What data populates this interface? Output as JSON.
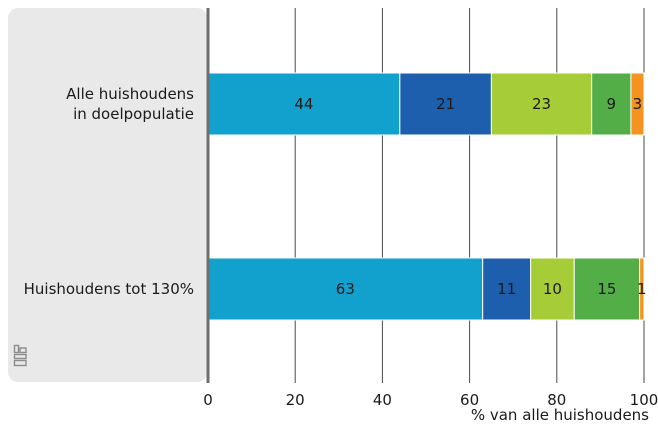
{
  "chart_data": {
    "type": "bar",
    "orientation": "horizontal",
    "stacked": true,
    "categories": [
      [
        "Alle huishoudens",
        "in doelpopulatie"
      ],
      [
        "Huishoudens tot 130%"
      ]
    ],
    "series": [
      {
        "values": [
          44,
          63
        ],
        "color": "#12a1cd"
      },
      {
        "values": [
          21,
          11
        ],
        "color": "#1d5fad"
      },
      {
        "values": [
          23,
          10
        ],
        "color": "#a6cd38"
      },
      {
        "values": [
          9,
          15
        ],
        "color": "#53ae48"
      },
      {
        "values": [
          3,
          1
        ],
        "color": "#f4931e"
      }
    ],
    "xlim": [
      0,
      100
    ],
    "xticks": [
      "0",
      "20",
      "40",
      "60",
      "80",
      "100"
    ],
    "xlabel": "% van alle huishoudens",
    "grid": "vertical",
    "label_panel_color": "#e9e9e9",
    "logo": "cbs-logo-icon"
  }
}
